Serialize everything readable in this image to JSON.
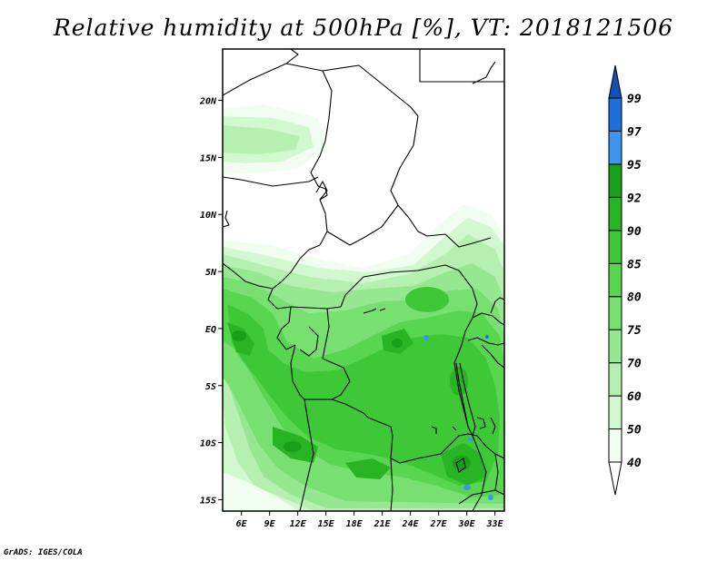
{
  "title": "Relative humidity at 500hPa [%], VT: 2018121506",
  "footer": "GrADS: IGES/COLA",
  "map": {
    "lon_range": [
      4,
      34
    ],
    "lat_range": [
      -16,
      24.5
    ],
    "x_ticks": [
      "6E",
      "9E",
      "12E",
      "15E",
      "18E",
      "21E",
      "24E",
      "27E",
      "30E",
      "33E"
    ],
    "y_ticks": [
      "20N",
      "15N",
      "10N",
      "5N",
      "EQ",
      "5S",
      "10S",
      "15S"
    ]
  },
  "colorbar": {
    "levels": [
      "40",
      "50",
      "60",
      "70",
      "75",
      "80",
      "85",
      "90",
      "92",
      "95",
      "97",
      "99"
    ],
    "colors": [
      "#f0fdf0",
      "#d2f8d0",
      "#b5f0b0",
      "#96e890",
      "#77e070",
      "#58d650",
      "#3ec838",
      "#28b424",
      "#18a018",
      "#3c96f0",
      "#1e6edc",
      "#1450b4"
    ]
  }
}
